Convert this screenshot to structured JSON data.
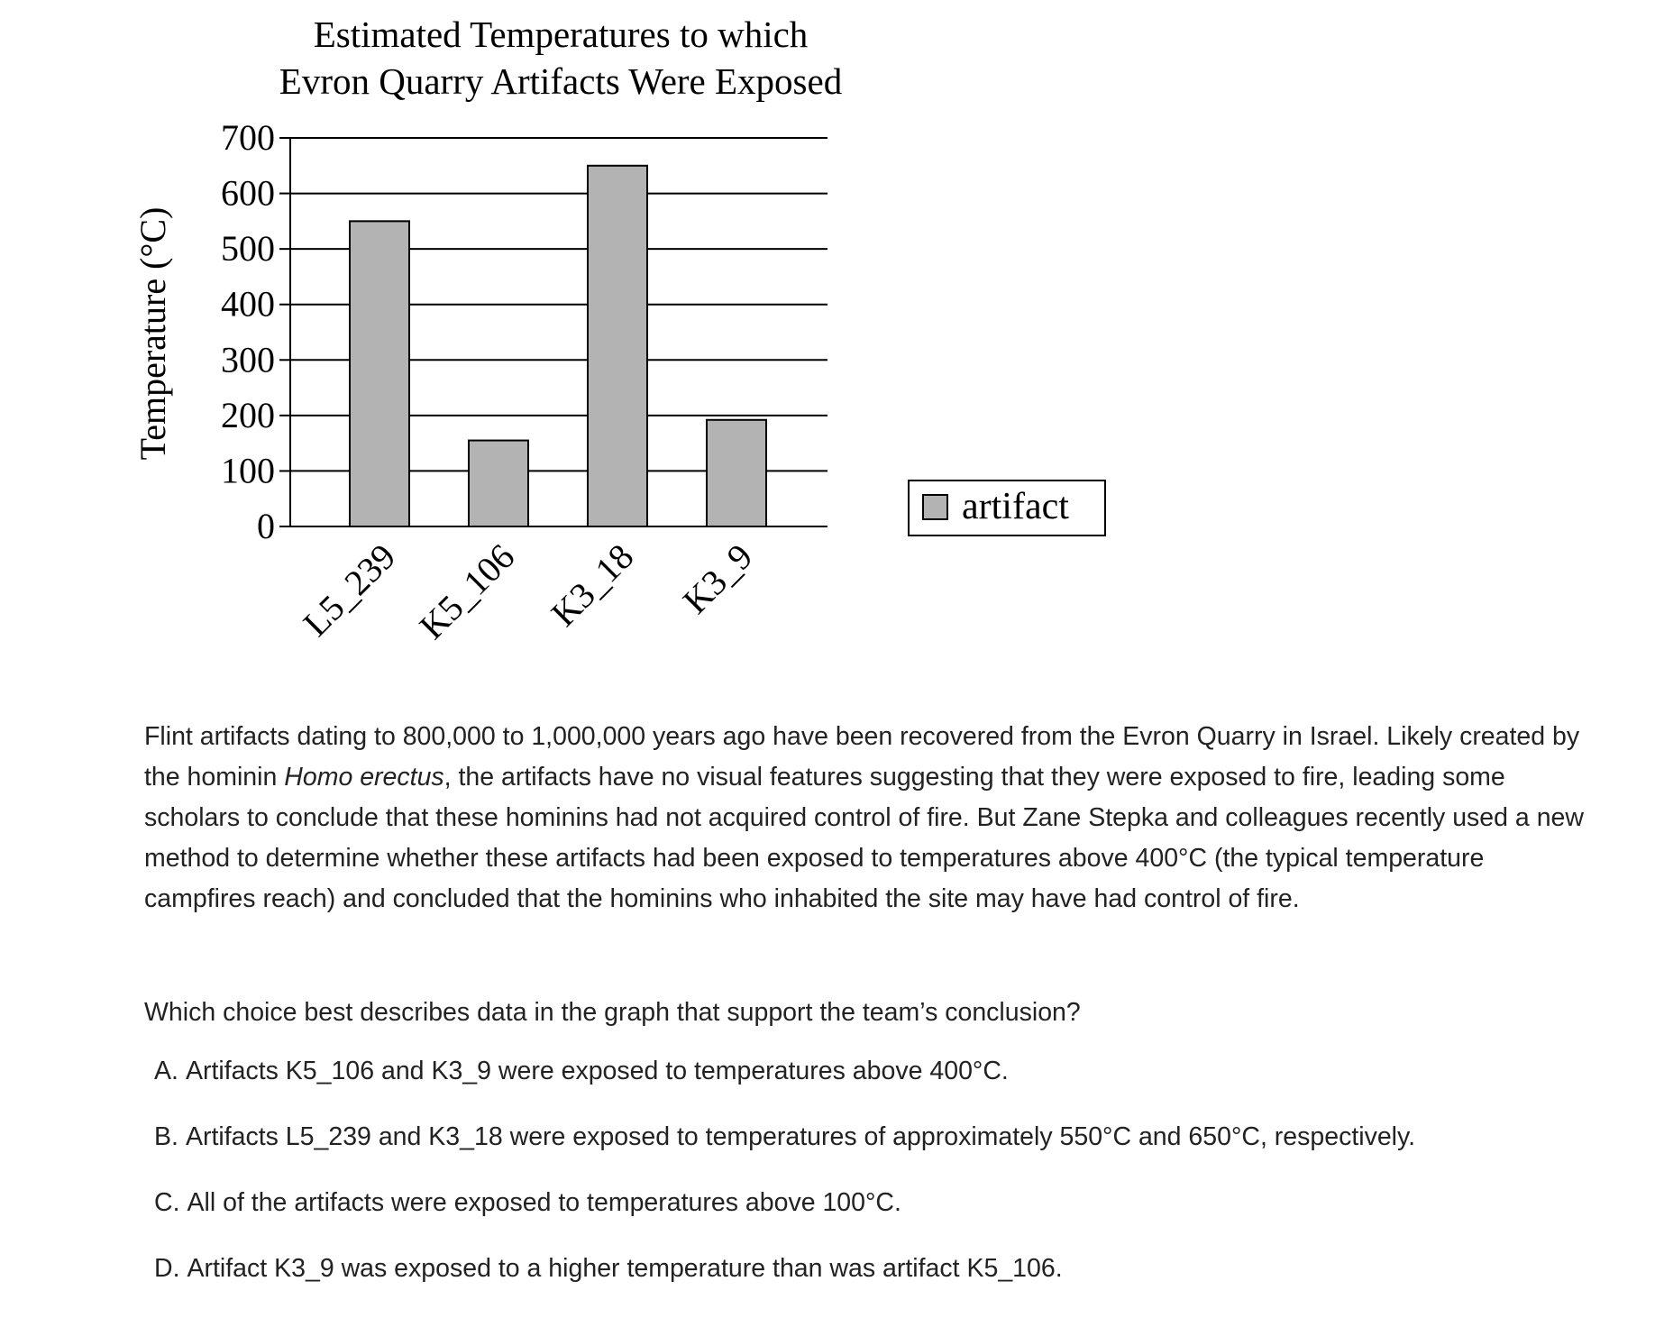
{
  "chart_data": {
    "type": "bar",
    "title_lines": [
      "Estimated Temperatures to which",
      "Evron Quarry Artifacts Were Exposed"
    ],
    "ylabel": "Temperature (°C)",
    "xlabel": "",
    "categories": [
      "L5_239",
      "K5_106",
      "K3_18",
      "K3_9"
    ],
    "series": [
      {
        "name": "artifact",
        "values": [
          550,
          155,
          650,
          192
        ]
      }
    ],
    "ylim": [
      0,
      700
    ],
    "yticks": [
      "0",
      "100",
      "200",
      "300",
      "400",
      "500",
      "600",
      "700"
    ],
    "grid": true,
    "legend_position": "right",
    "bar_color": "#b3b3b3"
  },
  "passage": {
    "text_before_italic": "Flint artifacts dating to 800,000 to 1,000,000 years ago have been recovered from the Evron Quarry in Israel. Likely created by the hominin ",
    "italic": "Homo erectus",
    "text_after_italic": ", the artifacts have no visual features suggesting that they were exposed to fire, leading some scholars to conclude that these hominins had not acquired control of fire. But Zane Stepka and colleagues recently used a new method to determine whether these artifacts had been exposed to temperatures above 400°C (the typical temperature campfires reach) and concluded that the hominins who inhabited the site may have had control of fire."
  },
  "question": "Which choice best describes data in the graph that support the team’s conclusion?",
  "choices": [
    {
      "letter": "A.",
      "text": "Artifacts K5_106 and K3_9 were exposed to temperatures above 400°C."
    },
    {
      "letter": "B.",
      "text": "Artifacts L5_239 and K3_18 were exposed to temperatures of approximately 550°C and 650°C, respectively."
    },
    {
      "letter": "C.",
      "text": "All of the artifacts were exposed to temperatures above 100°C."
    },
    {
      "letter": "D.",
      "text": "Artifact K3_9 was exposed to a higher temperature than was artifact K5_106."
    }
  ]
}
